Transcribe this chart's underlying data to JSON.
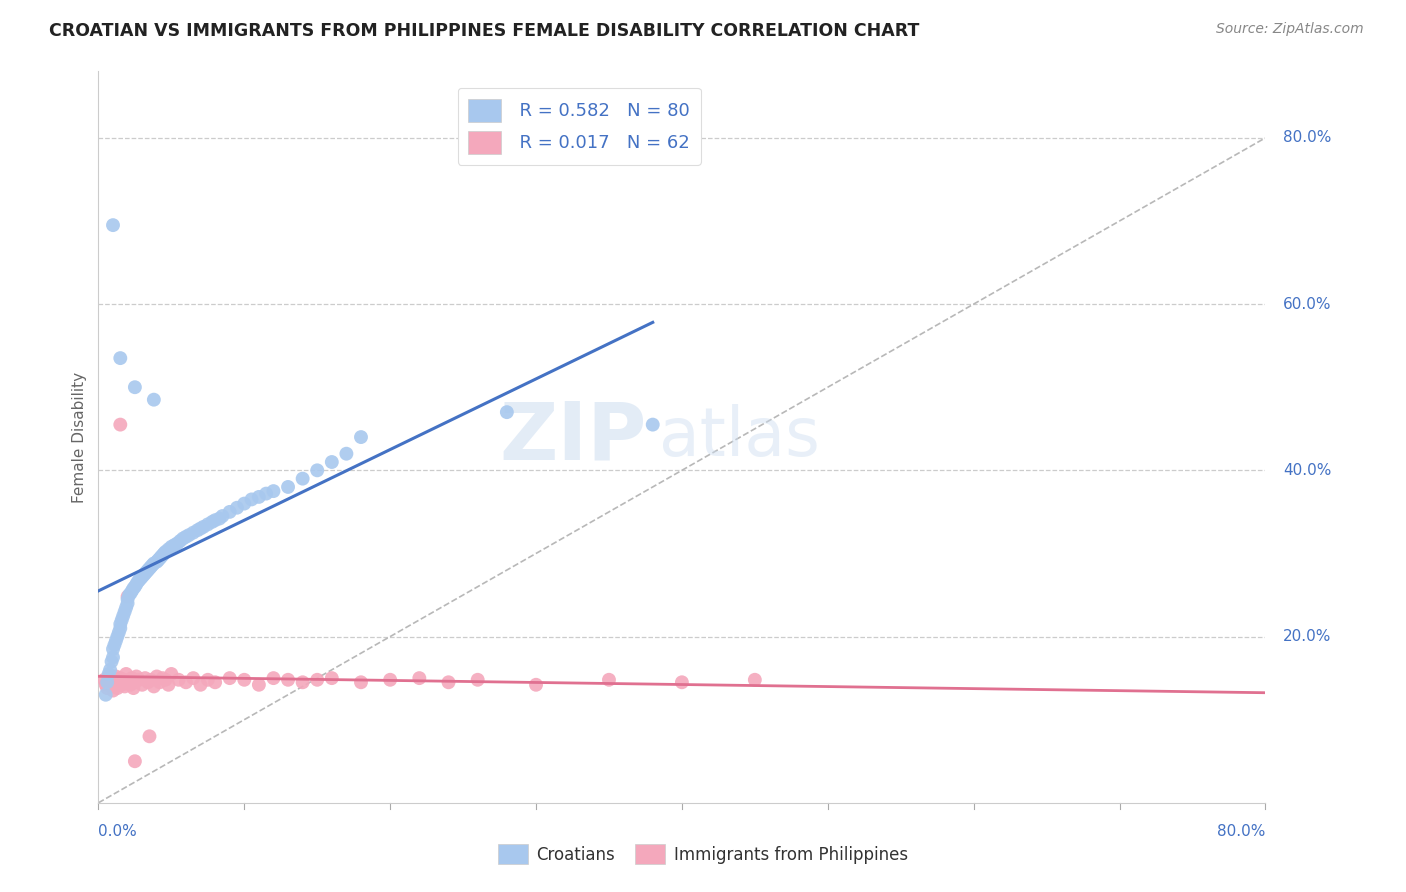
{
  "title": "CROATIAN VS IMMIGRANTS FROM PHILIPPINES FEMALE DISABILITY CORRELATION CHART",
  "source": "Source: ZipAtlas.com",
  "ylabel": "Female Disability",
  "ylabel_right_ticks": [
    "20.0%",
    "40.0%",
    "60.0%",
    "80.0%"
  ],
  "ylabel_right_vals": [
    0.2,
    0.4,
    0.6,
    0.8
  ],
  "xmin": 0.0,
  "xmax": 0.8,
  "ymin": 0.0,
  "ymax": 0.88,
  "croatians_R": 0.582,
  "croatians_N": 80,
  "philippines_R": 0.017,
  "philippines_N": 62,
  "croatians_color": "#a8c8ee",
  "philippines_color": "#f4a8bc",
  "croatians_line_color": "#4472c4",
  "philippines_line_color": "#e07090",
  "ref_line_color": "#b8b8b8",
  "background_color": "#ffffff",
  "grid_color": "#cccccc",
  "watermark_color": "#ddeeff",
  "legend_R1": "R = 0.582",
  "legend_N1": "N = 80",
  "legend_R2": "R = 0.017",
  "legend_N2": "N = 62",
  "croatians_x": [
    0.005,
    0.006,
    0.007,
    0.008,
    0.009,
    0.01,
    0.01,
    0.011,
    0.012,
    0.013,
    0.014,
    0.015,
    0.015,
    0.016,
    0.017,
    0.018,
    0.019,
    0.02,
    0.02,
    0.021,
    0.022,
    0.023,
    0.024,
    0.025,
    0.026,
    0.027,
    0.028,
    0.029,
    0.03,
    0.031,
    0.032,
    0.033,
    0.034,
    0.035,
    0.036,
    0.037,
    0.038,
    0.04,
    0.041,
    0.042,
    0.043,
    0.044,
    0.045,
    0.046,
    0.048,
    0.05,
    0.052,
    0.054,
    0.056,
    0.058,
    0.06,
    0.062,
    0.065,
    0.068,
    0.07,
    0.072,
    0.075,
    0.078,
    0.08,
    0.083,
    0.085,
    0.09,
    0.095,
    0.1,
    0.105,
    0.11,
    0.115,
    0.12,
    0.13,
    0.14,
    0.15,
    0.16,
    0.17,
    0.18,
    0.038,
    0.025,
    0.28,
    0.38,
    0.015,
    0.01
  ],
  "croatians_y": [
    0.13,
    0.145,
    0.155,
    0.16,
    0.17,
    0.175,
    0.185,
    0.19,
    0.195,
    0.2,
    0.205,
    0.21,
    0.215,
    0.22,
    0.225,
    0.23,
    0.235,
    0.24,
    0.245,
    0.25,
    0.252,
    0.255,
    0.258,
    0.26,
    0.263,
    0.266,
    0.268,
    0.27,
    0.272,
    0.274,
    0.276,
    0.278,
    0.28,
    0.282,
    0.284,
    0.286,
    0.288,
    0.29,
    0.292,
    0.294,
    0.296,
    0.298,
    0.3,
    0.302,
    0.305,
    0.308,
    0.31,
    0.312,
    0.315,
    0.318,
    0.32,
    0.322,
    0.325,
    0.328,
    0.33,
    0.332,
    0.335,
    0.338,
    0.34,
    0.342,
    0.345,
    0.35,
    0.355,
    0.36,
    0.365,
    0.368,
    0.372,
    0.375,
    0.38,
    0.39,
    0.4,
    0.41,
    0.42,
    0.44,
    0.485,
    0.5,
    0.47,
    0.455,
    0.535,
    0.695
  ],
  "philippines_x": [
    0.004,
    0.005,
    0.006,
    0.007,
    0.008,
    0.009,
    0.01,
    0.011,
    0.012,
    0.013,
    0.014,
    0.015,
    0.016,
    0.017,
    0.018,
    0.019,
    0.02,
    0.021,
    0.022,
    0.023,
    0.024,
    0.025,
    0.026,
    0.028,
    0.03,
    0.032,
    0.034,
    0.036,
    0.038,
    0.04,
    0.042,
    0.044,
    0.046,
    0.048,
    0.05,
    0.055,
    0.06,
    0.065,
    0.07,
    0.075,
    0.08,
    0.09,
    0.1,
    0.11,
    0.12,
    0.13,
    0.14,
    0.15,
    0.16,
    0.18,
    0.2,
    0.22,
    0.24,
    0.26,
    0.3,
    0.35,
    0.4,
    0.45,
    0.025,
    0.035,
    0.015,
    0.02
  ],
  "philippines_y": [
    0.148,
    0.142,
    0.138,
    0.152,
    0.145,
    0.14,
    0.135,
    0.148,
    0.152,
    0.138,
    0.145,
    0.15,
    0.142,
    0.148,
    0.14,
    0.155,
    0.145,
    0.148,
    0.142,
    0.15,
    0.138,
    0.145,
    0.152,
    0.148,
    0.142,
    0.15,
    0.145,
    0.148,
    0.14,
    0.152,
    0.145,
    0.15,
    0.148,
    0.142,
    0.155,
    0.148,
    0.145,
    0.15,
    0.142,
    0.148,
    0.145,
    0.15,
    0.148,
    0.142,
    0.15,
    0.148,
    0.145,
    0.148,
    0.15,
    0.145,
    0.148,
    0.15,
    0.145,
    0.148,
    0.142,
    0.148,
    0.145,
    0.148,
    0.05,
    0.08,
    0.455,
    0.248
  ]
}
